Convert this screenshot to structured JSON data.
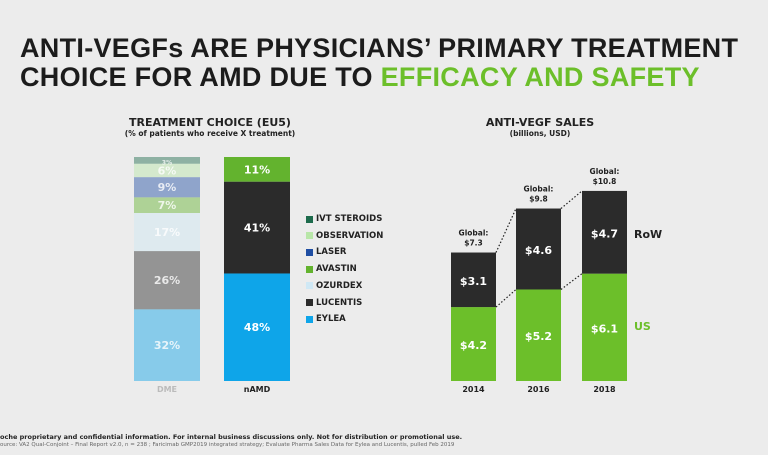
{
  "title": {
    "line1": "ANTI-VEGFs ARE PHYSICIANS’ PRIMARY TREATMENT",
    "line2a": "CHOICE FOR AMD DUE TO ",
    "line2b": "EFFICACY AND SAFETY"
  },
  "footer": {
    "confidential": "oche proprietary and confidential information. For internal business discussions only. Not for distribution or promotional use.",
    "source": "ource: VA2 Qual-Conjoint – Final Report v2.0, n = 238 ; Faricimab GMP2019 integrated strategy; Evaluate Pharma Sales Data for Eylea and Lucentis, pulled Feb 2019"
  },
  "chart_data": [
    {
      "type": "bar",
      "stacked": true,
      "title": "TREATMENT CHOICE (EU5)",
      "subtitle": "(% of patients who receive X treatment)",
      "categories": [
        "DME",
        "nAMD"
      ],
      "legend": [
        "IVT STEROIDS",
        "OBSERVATION",
        "LASER",
        "AVASTIN",
        "OZURDEX",
        "LUCENTIS",
        "EYLEA"
      ],
      "series": [
        {
          "name": "EYLEA",
          "color": "#0ea5e9",
          "values": [
            32,
            48
          ],
          "labels": [
            "32%",
            "48%"
          ]
        },
        {
          "name": "LUCENTIS",
          "color": "#2b2b2b",
          "values": [
            26,
            41
          ],
          "labels": [
            "26%",
            "41%"
          ]
        },
        {
          "name": "OZURDEX",
          "color": "#cfe8f5",
          "values": [
            17,
            0
          ],
          "labels": [
            "17%",
            ""
          ]
        },
        {
          "name": "AVASTIN",
          "color": "#63b32e",
          "values": [
            7,
            11
          ],
          "labels": [
            "7%",
            "11%"
          ]
        },
        {
          "name": "LASER",
          "color": "#1f4ea3",
          "values": [
            9,
            0
          ],
          "labels": [
            "9%",
            ""
          ]
        },
        {
          "name": "OBSERVATION",
          "color": "#b8e6a8",
          "values": [
            6,
            0
          ],
          "labels": [
            "6%",
            ""
          ]
        },
        {
          "name": "IVT STEROIDS",
          "color": "#1d6b4c",
          "values": [
            3,
            0
          ],
          "labels": [
            "3%",
            ""
          ]
        }
      ],
      "note": "DME column shown faded"
    },
    {
      "type": "bar",
      "stacked": true,
      "title": "ANTI-VEGF SALES",
      "subtitle": "(billions, USD)",
      "categories": [
        "2014",
        "2016",
        "2018"
      ],
      "series": [
        {
          "name": "US",
          "color": "#6cbf2a",
          "values": [
            4.2,
            5.2,
            6.1
          ],
          "labels": [
            "$4.2",
            "$5.2",
            "$6.1"
          ]
        },
        {
          "name": "RoW",
          "color": "#2b2b2b",
          "values": [
            3.1,
            4.6,
            4.7
          ],
          "labels": [
            "$3.1",
            "$4.6",
            "$4.7"
          ]
        }
      ],
      "totals": [
        {
          "label": "Global:",
          "value": "$7.3"
        },
        {
          "label": "Global:",
          "value": "$9.8"
        },
        {
          "label": "Global:",
          "value": "$10.8"
        }
      ],
      "ylim": [
        0,
        12
      ]
    }
  ]
}
